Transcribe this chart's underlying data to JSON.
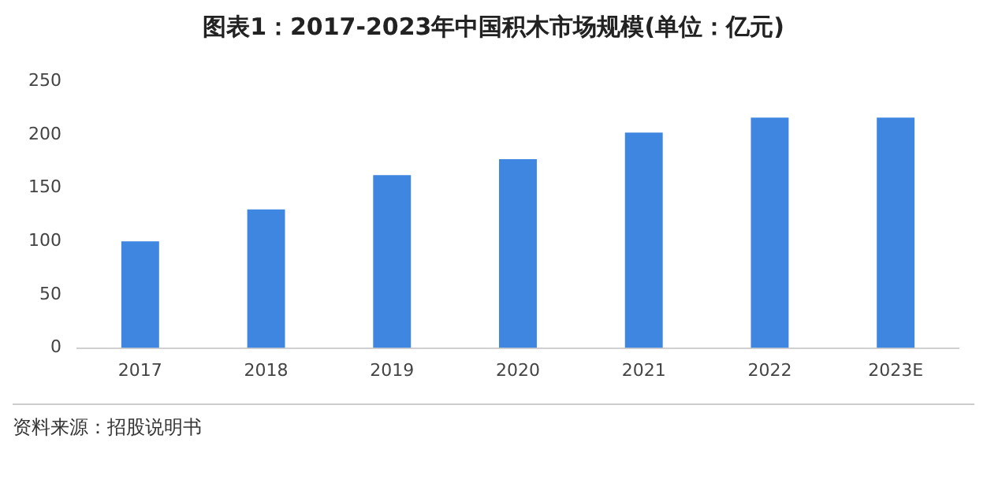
{
  "chart_data": {
    "type": "bar",
    "title": "图表1：2017-2023年中国积木市场规模(单位：亿元)",
    "categories": [
      "2017",
      "2018",
      "2019",
      "2020",
      "2021",
      "2022",
      "2023E"
    ],
    "values": [
      100,
      130,
      162,
      177,
      202,
      216,
      216
    ],
    "color": "#3f86e0",
    "ylim": [
      0,
      250
    ],
    "yticks": [
      0,
      50,
      100,
      150,
      200,
      250
    ],
    "grid": false,
    "legend": false,
    "annotations": [
      "资料来源：招股说明书"
    ]
  }
}
